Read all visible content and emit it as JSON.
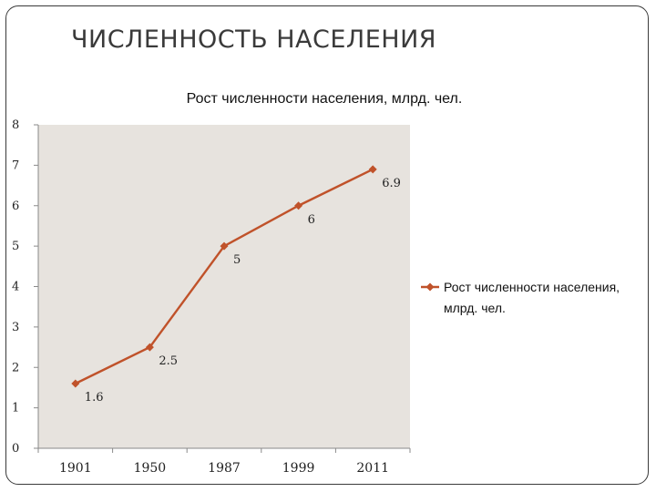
{
  "slide": {
    "title": "ЧИСЛЕННОСТЬ НАСЕЛЕНИЯ"
  },
  "chart_data": {
    "type": "line",
    "title": "Рост численности населения, млрд. чел.",
    "xlabel": "",
    "ylabel": "",
    "categories": [
      "1901",
      "1950",
      "1987",
      "1999",
      "2011"
    ],
    "series": [
      {
        "name": "Рост численности населения, млрд. чел.",
        "legend_lines": [
          "Рост численности населения,",
          "млрд. чел."
        ],
        "values": [
          1.6,
          2.5,
          5,
          6,
          6.9
        ],
        "labels": [
          "1.6",
          "2.5",
          "5",
          "6",
          "6.9"
        ],
        "color": "#c0522a"
      }
    ],
    "ylim": [
      0,
      8
    ],
    "yticks": [
      "0",
      "1",
      "2",
      "3",
      "4",
      "5",
      "6",
      "7",
      "8"
    ],
    "grid": false,
    "legend_position": "right",
    "plot_background": "#e7e3de"
  }
}
